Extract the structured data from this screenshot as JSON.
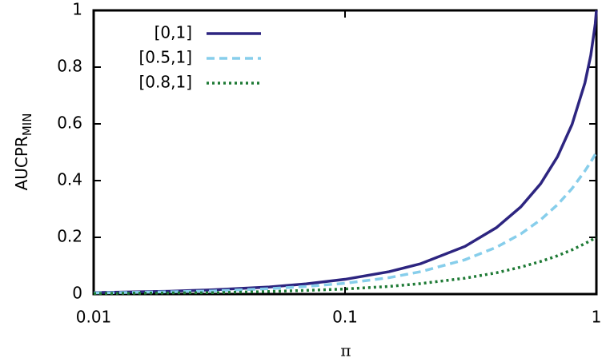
{
  "chart_data": {
    "type": "line",
    "x_label": "π",
    "y_label": "AUCPR",
    "y_label_sub": "MIN",
    "x": [
      0.01,
      0.02,
      0.03,
      0.05,
      0.07,
      0.1,
      0.15,
      0.2,
      0.3,
      0.4,
      0.5,
      0.6,
      0.7,
      0.8,
      0.9,
      0.95,
      0.99,
      1
    ],
    "series": [
      {
        "name": "[0,1]",
        "color": "#2d2580",
        "dash": "solid",
        "values": [
          0.005,
          0.01,
          0.015,
          0.025,
          0.036,
          0.052,
          0.079,
          0.107,
          0.168,
          0.234,
          0.307,
          0.389,
          0.484,
          0.598,
          0.744,
          0.842,
          0.953,
          1
        ]
      },
      {
        "name": "[0.5,1]",
        "color": "#87ceeb",
        "dash": "dashed",
        "values": [
          0.004,
          0.008,
          0.011,
          0.019,
          0.027,
          0.038,
          0.058,
          0.079,
          0.121,
          0.165,
          0.212,
          0.262,
          0.315,
          0.372,
          0.434,
          0.466,
          0.493,
          0.5
        ]
      },
      {
        "name": "[0.8,1]",
        "color": "#1e7a35",
        "dash": "dotted",
        "values": [
          0.002,
          0.004,
          0.005,
          0.009,
          0.013,
          0.018,
          0.027,
          0.037,
          0.056,
          0.075,
          0.095,
          0.115,
          0.135,
          0.156,
          0.178,
          0.189,
          0.198,
          0.2
        ]
      }
    ],
    "xscale": "log",
    "xlim": [
      0.01,
      1
    ],
    "xticks": [
      0.01,
      0.1,
      1
    ],
    "ylim": [
      0,
      1
    ],
    "yticks": [
      0,
      0.2,
      0.4,
      0.6,
      0.8,
      1
    ],
    "legend": "top-left"
  }
}
